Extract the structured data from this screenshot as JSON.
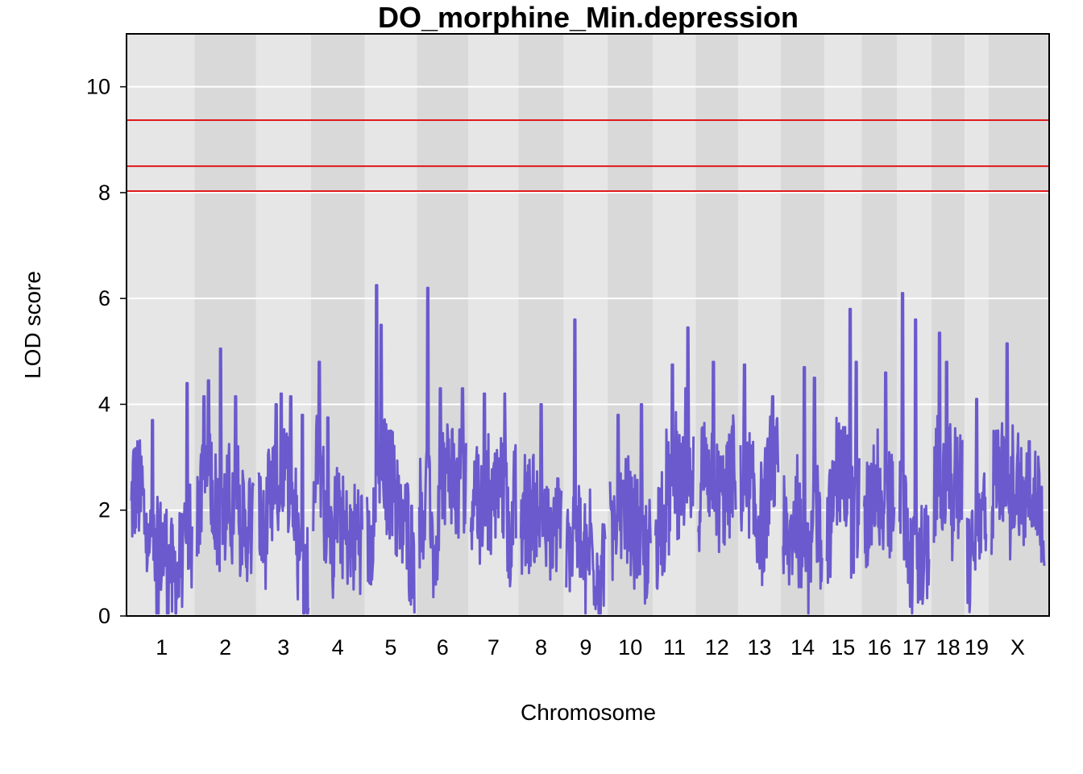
{
  "chart_data": {
    "type": "line",
    "title": "DO_morphine_Min.depression",
    "xlabel": "Chromosome",
    "ylabel": "LOD score",
    "ylim": [
      0,
      11
    ],
    "yticks": [
      0,
      2,
      4,
      6,
      8,
      10
    ],
    "thresholds": [
      9.37,
      8.5,
      8.03
    ],
    "colors": {
      "line": "#6a5acd",
      "threshold": "#e0191b",
      "band_light": "#e6e6e6",
      "band_dark": "#d9d9d9",
      "grid": "#ffffff"
    },
    "grid": true,
    "chromosomes": [
      {
        "label": "1",
        "len": 195,
        "peaks": [
          [
            0.35,
            3.7
          ],
          [
            0.92,
            4.4
          ]
        ]
      },
      {
        "label": "2",
        "len": 182,
        "peaks": [
          [
            0.12,
            4.15
          ],
          [
            0.2,
            4.45
          ],
          [
            0.42,
            5.05
          ],
          [
            0.68,
            4.15
          ]
        ]
      },
      {
        "label": "3",
        "len": 160,
        "peaks": [
          [
            0.35,
            4.0
          ],
          [
            0.45,
            4.2
          ],
          [
            0.65,
            4.15
          ],
          [
            0.88,
            3.8
          ]
        ]
      },
      {
        "label": "4",
        "len": 157,
        "peaks": [
          [
            0.12,
            4.8
          ],
          [
            0.3,
            3.75
          ]
        ]
      },
      {
        "label": "5",
        "len": 152,
        "peaks": [
          [
            0.2,
            6.25
          ],
          [
            0.3,
            5.5
          ],
          [
            0.5,
            3.5
          ]
        ]
      },
      {
        "label": "6",
        "len": 150,
        "peaks": [
          [
            0.18,
            6.2
          ],
          [
            0.45,
            4.3
          ],
          [
            0.92,
            4.3
          ]
        ]
      },
      {
        "label": "7",
        "len": 145,
        "peaks": [
          [
            0.3,
            4.2
          ],
          [
            0.75,
            4.2
          ]
        ]
      },
      {
        "label": "8",
        "len": 130,
        "peaks": [
          [
            0.5,
            4.0
          ]
        ]
      },
      {
        "label": "9",
        "len": 125,
        "peaks": [
          [
            0.22,
            5.6
          ]
        ]
      },
      {
        "label": "10",
        "len": 130,
        "peaks": [
          [
            0.2,
            3.8
          ],
          [
            0.78,
            4.0
          ]
        ]
      },
      {
        "label": "11",
        "len": 122,
        "peaks": [
          [
            0.45,
            4.75
          ],
          [
            0.8,
            4.3
          ],
          [
            0.86,
            5.45
          ]
        ]
      },
      {
        "label": "12",
        "len": 120,
        "peaks": [
          [
            0.4,
            4.8
          ]
        ]
      },
      {
        "label": "13",
        "len": 121,
        "peaks": [
          [
            0.1,
            4.75
          ],
          [
            0.85,
            4.15
          ]
        ]
      },
      {
        "label": "14",
        "len": 125,
        "peaks": [
          [
            0.55,
            4.7
          ],
          [
            0.8,
            4.5
          ]
        ]
      },
      {
        "label": "15",
        "len": 104,
        "peaks": [
          [
            0.45,
            3.5
          ],
          [
            0.72,
            5.8
          ],
          [
            0.9,
            4.8
          ]
        ]
      },
      {
        "label": "16",
        "len": 98,
        "peaks": [
          [
            0.7,
            4.6
          ]
        ]
      },
      {
        "label": "17",
        "len": 95,
        "peaks": [
          [
            0.1,
            6.1
          ],
          [
            0.55,
            5.6
          ]
        ]
      },
      {
        "label": "18",
        "len": 91,
        "peaks": [
          [
            0.2,
            5.35
          ],
          [
            0.45,
            4.8
          ]
        ]
      },
      {
        "label": "19",
        "len": 61,
        "peaks": [
          [
            0.5,
            4.1
          ]
        ]
      },
      {
        "label": "X",
        "len": 171,
        "peaks": [
          [
            0.3,
            5.15
          ],
          [
            0.72,
            3.3
          ]
        ]
      }
    ]
  }
}
